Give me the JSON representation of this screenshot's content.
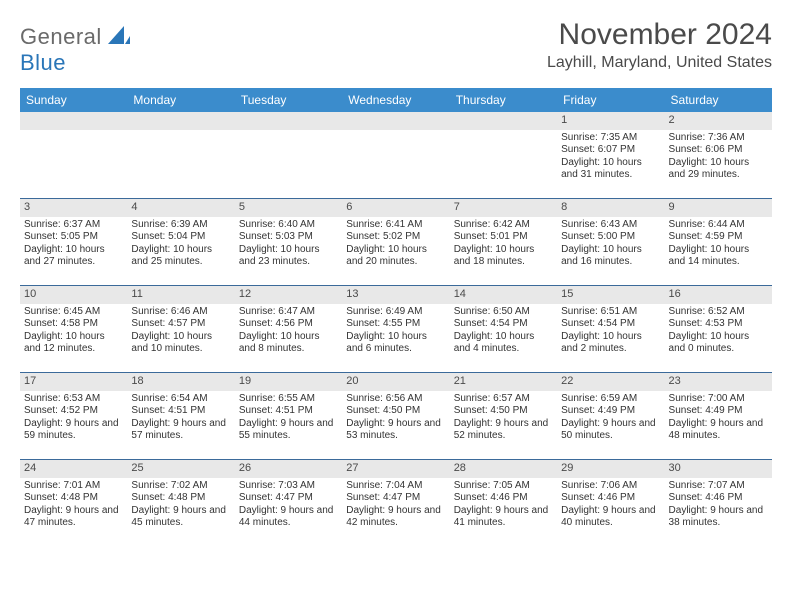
{
  "logo": {
    "line1": "General",
    "line2": "Blue"
  },
  "title": "November 2024",
  "location": "Layhill, Maryland, United States",
  "colors": {
    "header_bg": "#3b8ccc",
    "header_text": "#ffffff",
    "daynum_bg": "#e8e8e8",
    "row_border": "#3b6a9a",
    "logo_gray": "#6a6a6a",
    "logo_blue": "#2a76b8"
  },
  "weekdays": [
    "Sunday",
    "Monday",
    "Tuesday",
    "Wednesday",
    "Thursday",
    "Friday",
    "Saturday"
  ],
  "weeks": [
    [
      {
        "empty": true
      },
      {
        "empty": true
      },
      {
        "empty": true
      },
      {
        "empty": true
      },
      {
        "empty": true
      },
      {
        "day": "1",
        "sunrise": "Sunrise: 7:35 AM",
        "sunset": "Sunset: 6:07 PM",
        "daylight": "Daylight: 10 hours and 31 minutes."
      },
      {
        "day": "2",
        "sunrise": "Sunrise: 7:36 AM",
        "sunset": "Sunset: 6:06 PM",
        "daylight": "Daylight: 10 hours and 29 minutes."
      }
    ],
    [
      {
        "day": "3",
        "sunrise": "Sunrise: 6:37 AM",
        "sunset": "Sunset: 5:05 PM",
        "daylight": "Daylight: 10 hours and 27 minutes."
      },
      {
        "day": "4",
        "sunrise": "Sunrise: 6:39 AM",
        "sunset": "Sunset: 5:04 PM",
        "daylight": "Daylight: 10 hours and 25 minutes."
      },
      {
        "day": "5",
        "sunrise": "Sunrise: 6:40 AM",
        "sunset": "Sunset: 5:03 PM",
        "daylight": "Daylight: 10 hours and 23 minutes."
      },
      {
        "day": "6",
        "sunrise": "Sunrise: 6:41 AM",
        "sunset": "Sunset: 5:02 PM",
        "daylight": "Daylight: 10 hours and 20 minutes."
      },
      {
        "day": "7",
        "sunrise": "Sunrise: 6:42 AM",
        "sunset": "Sunset: 5:01 PM",
        "daylight": "Daylight: 10 hours and 18 minutes."
      },
      {
        "day": "8",
        "sunrise": "Sunrise: 6:43 AM",
        "sunset": "Sunset: 5:00 PM",
        "daylight": "Daylight: 10 hours and 16 minutes."
      },
      {
        "day": "9",
        "sunrise": "Sunrise: 6:44 AM",
        "sunset": "Sunset: 4:59 PM",
        "daylight": "Daylight: 10 hours and 14 minutes."
      }
    ],
    [
      {
        "day": "10",
        "sunrise": "Sunrise: 6:45 AM",
        "sunset": "Sunset: 4:58 PM",
        "daylight": "Daylight: 10 hours and 12 minutes."
      },
      {
        "day": "11",
        "sunrise": "Sunrise: 6:46 AM",
        "sunset": "Sunset: 4:57 PM",
        "daylight": "Daylight: 10 hours and 10 minutes."
      },
      {
        "day": "12",
        "sunrise": "Sunrise: 6:47 AM",
        "sunset": "Sunset: 4:56 PM",
        "daylight": "Daylight: 10 hours and 8 minutes."
      },
      {
        "day": "13",
        "sunrise": "Sunrise: 6:49 AM",
        "sunset": "Sunset: 4:55 PM",
        "daylight": "Daylight: 10 hours and 6 minutes."
      },
      {
        "day": "14",
        "sunrise": "Sunrise: 6:50 AM",
        "sunset": "Sunset: 4:54 PM",
        "daylight": "Daylight: 10 hours and 4 minutes."
      },
      {
        "day": "15",
        "sunrise": "Sunrise: 6:51 AM",
        "sunset": "Sunset: 4:54 PM",
        "daylight": "Daylight: 10 hours and 2 minutes."
      },
      {
        "day": "16",
        "sunrise": "Sunrise: 6:52 AM",
        "sunset": "Sunset: 4:53 PM",
        "daylight": "Daylight: 10 hours and 0 minutes."
      }
    ],
    [
      {
        "day": "17",
        "sunrise": "Sunrise: 6:53 AM",
        "sunset": "Sunset: 4:52 PM",
        "daylight": "Daylight: 9 hours and 59 minutes."
      },
      {
        "day": "18",
        "sunrise": "Sunrise: 6:54 AM",
        "sunset": "Sunset: 4:51 PM",
        "daylight": "Daylight: 9 hours and 57 minutes."
      },
      {
        "day": "19",
        "sunrise": "Sunrise: 6:55 AM",
        "sunset": "Sunset: 4:51 PM",
        "daylight": "Daylight: 9 hours and 55 minutes."
      },
      {
        "day": "20",
        "sunrise": "Sunrise: 6:56 AM",
        "sunset": "Sunset: 4:50 PM",
        "daylight": "Daylight: 9 hours and 53 minutes."
      },
      {
        "day": "21",
        "sunrise": "Sunrise: 6:57 AM",
        "sunset": "Sunset: 4:50 PM",
        "daylight": "Daylight: 9 hours and 52 minutes."
      },
      {
        "day": "22",
        "sunrise": "Sunrise: 6:59 AM",
        "sunset": "Sunset: 4:49 PM",
        "daylight": "Daylight: 9 hours and 50 minutes."
      },
      {
        "day": "23",
        "sunrise": "Sunrise: 7:00 AM",
        "sunset": "Sunset: 4:49 PM",
        "daylight": "Daylight: 9 hours and 48 minutes."
      }
    ],
    [
      {
        "day": "24",
        "sunrise": "Sunrise: 7:01 AM",
        "sunset": "Sunset: 4:48 PM",
        "daylight": "Daylight: 9 hours and 47 minutes."
      },
      {
        "day": "25",
        "sunrise": "Sunrise: 7:02 AM",
        "sunset": "Sunset: 4:48 PM",
        "daylight": "Daylight: 9 hours and 45 minutes."
      },
      {
        "day": "26",
        "sunrise": "Sunrise: 7:03 AM",
        "sunset": "Sunset: 4:47 PM",
        "daylight": "Daylight: 9 hours and 44 minutes."
      },
      {
        "day": "27",
        "sunrise": "Sunrise: 7:04 AM",
        "sunset": "Sunset: 4:47 PM",
        "daylight": "Daylight: 9 hours and 42 minutes."
      },
      {
        "day": "28",
        "sunrise": "Sunrise: 7:05 AM",
        "sunset": "Sunset: 4:46 PM",
        "daylight": "Daylight: 9 hours and 41 minutes."
      },
      {
        "day": "29",
        "sunrise": "Sunrise: 7:06 AM",
        "sunset": "Sunset: 4:46 PM",
        "daylight": "Daylight: 9 hours and 40 minutes."
      },
      {
        "day": "30",
        "sunrise": "Sunrise: 7:07 AM",
        "sunset": "Sunset: 4:46 PM",
        "daylight": "Daylight: 9 hours and 38 minutes."
      }
    ]
  ]
}
